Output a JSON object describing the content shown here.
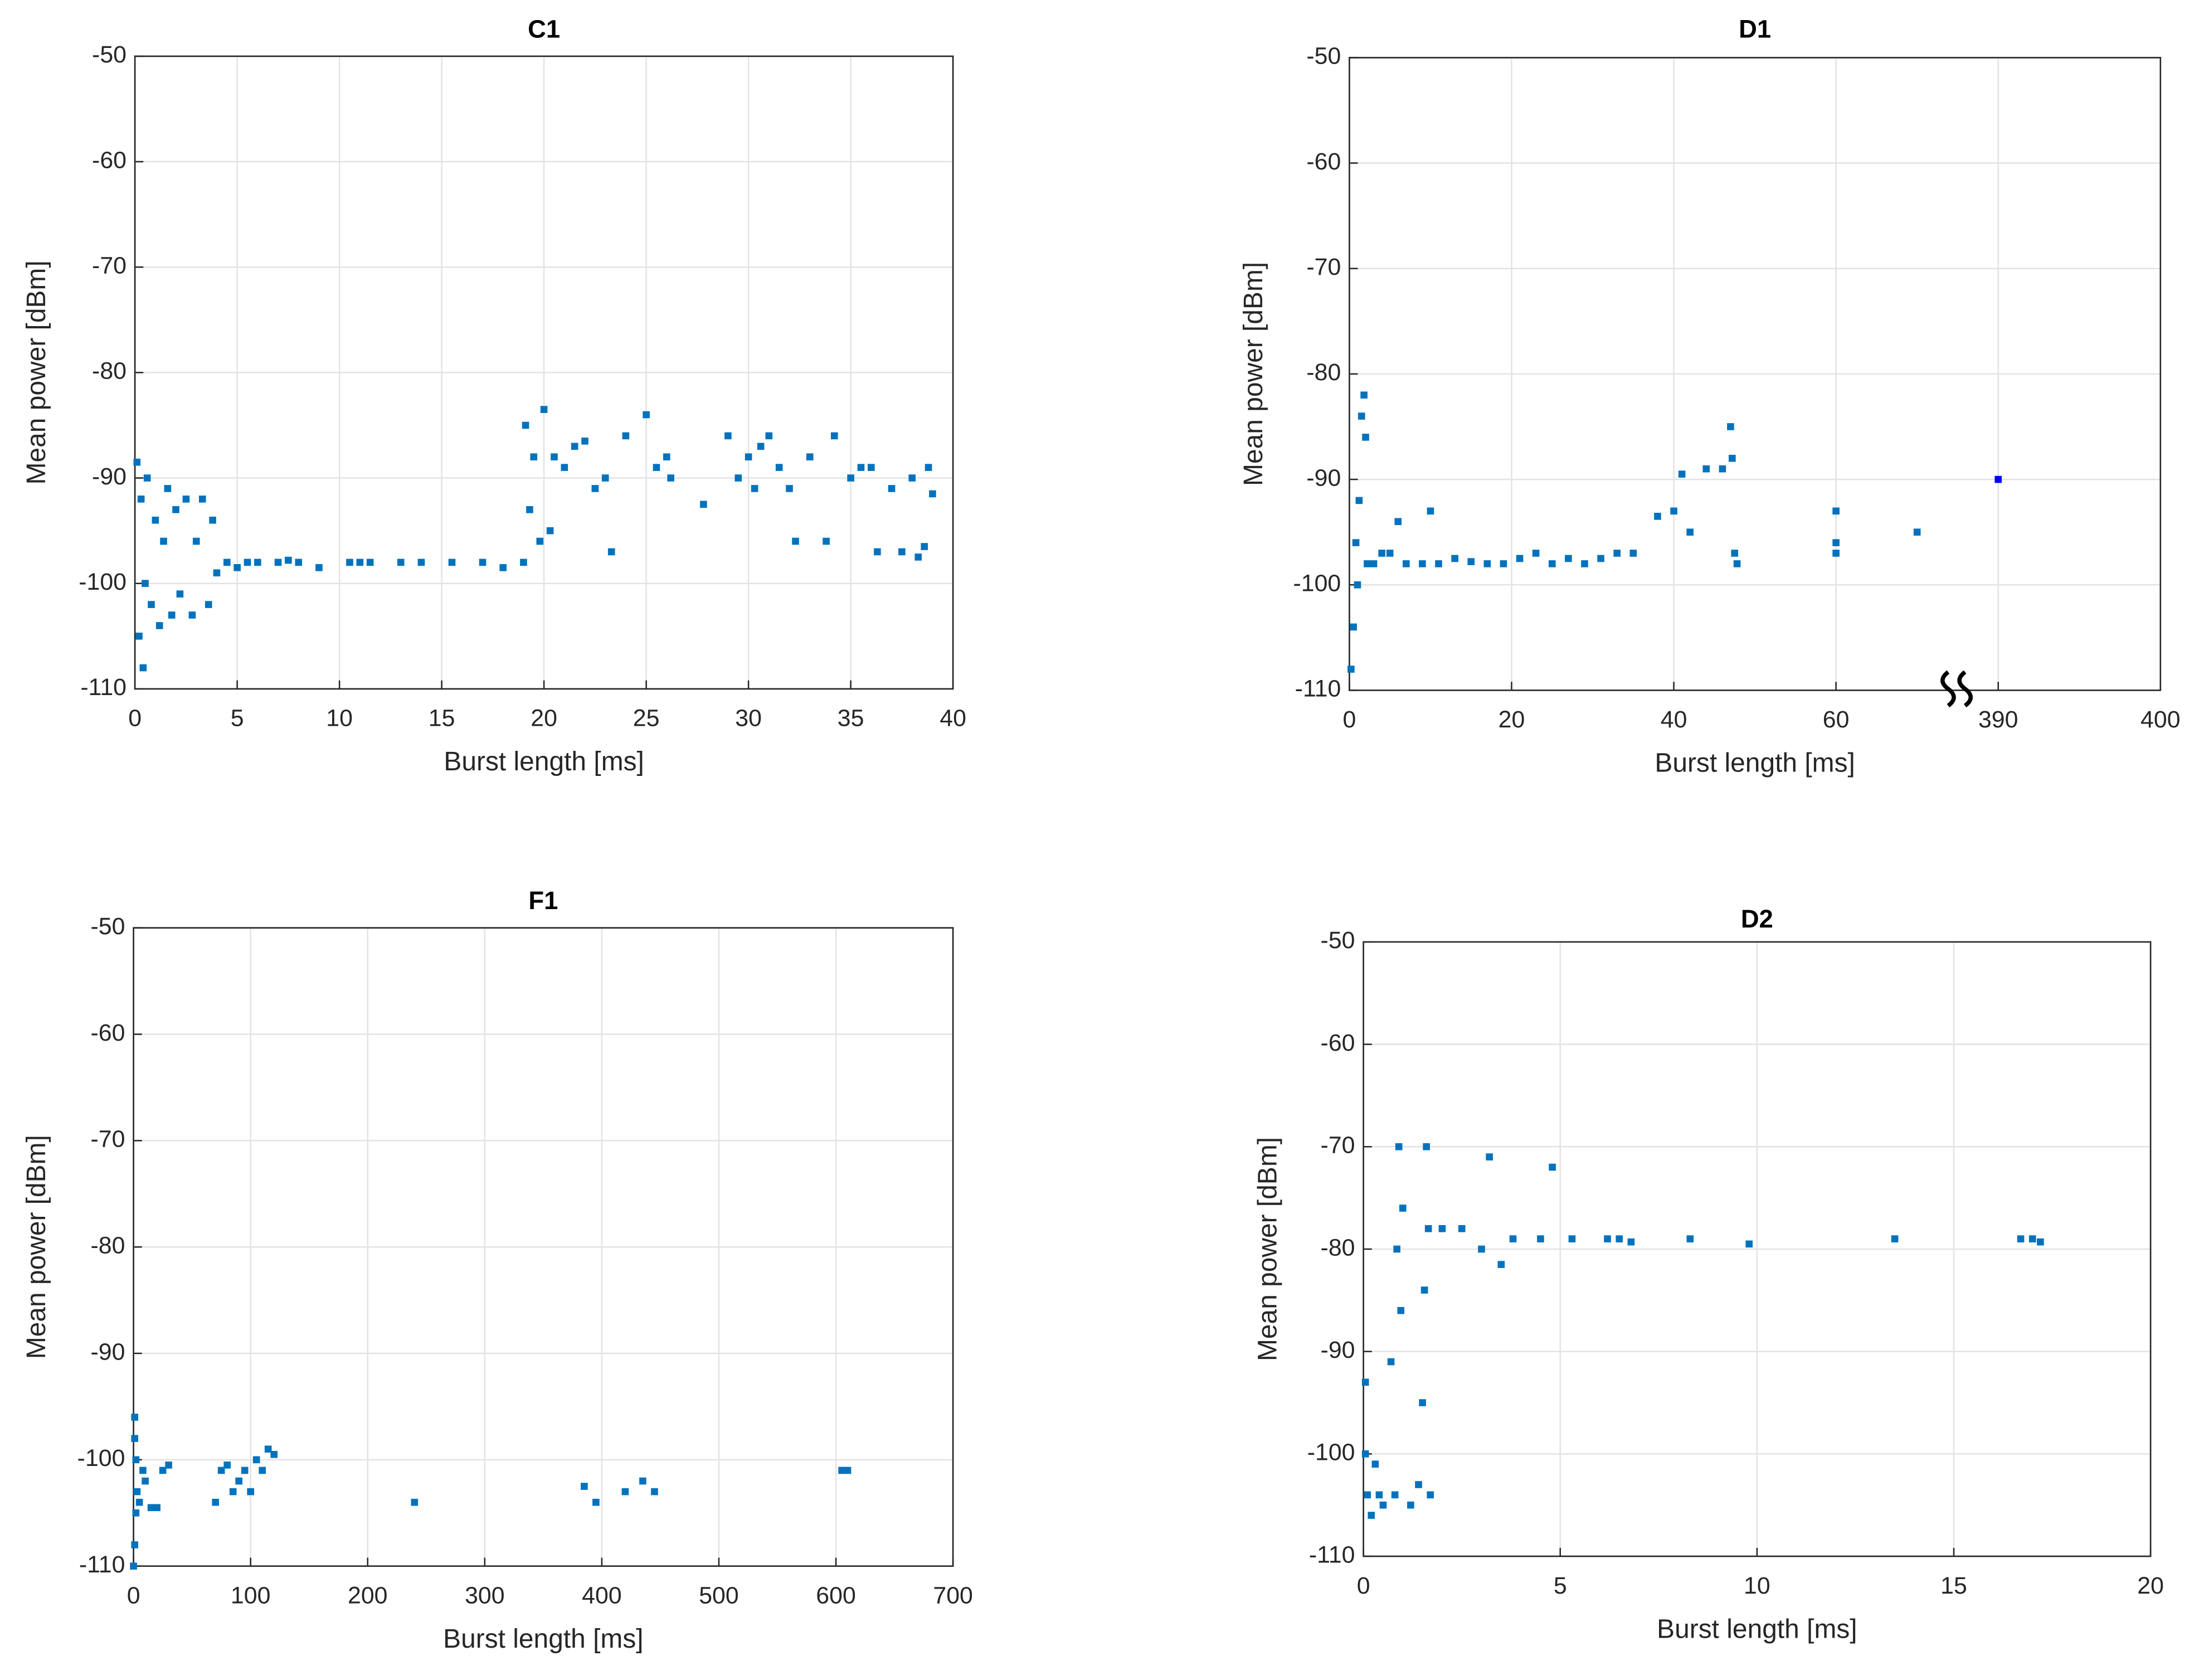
{
  "chart_data": [
    {
      "type": "scatter",
      "title": "C1",
      "xlabel": "Burst length [ms]",
      "ylabel": "Mean power [dBm]",
      "xlim": [
        0,
        40
      ],
      "xticks": [
        0,
        5,
        10,
        15,
        20,
        25,
        30,
        35,
        40
      ],
      "ylim": [
        -110,
        -50
      ],
      "yticks": [
        -110,
        -100,
        -90,
        -80,
        -70,
        -60,
        -50
      ],
      "grid": true,
      "series": [
        {
          "color": "#0072bd",
          "x": [
            0.1,
            0.2,
            0.3,
            0.4,
            0.5,
            0.6,
            0.8,
            1,
            1.2,
            1.4,
            1.6,
            1.8,
            2,
            2.2,
            2.5,
            2.8,
            3,
            3.3,
            3.6,
            3.8,
            4,
            4.5,
            5,
            5.5,
            6,
            7,
            7.5,
            8,
            9,
            10.5,
            11,
            11.5,
            13,
            14,
            15.5,
            17,
            18,
            19,
            19.1,
            19.3,
            19.5,
            19.8,
            20,
            20.3,
            20.5,
            21,
            21.5,
            22,
            22.5,
            23,
            23.3,
            24,
            25,
            25.5,
            26,
            26.2,
            27.8,
            29,
            29.5,
            30,
            30.3,
            30.6,
            31,
            31.5,
            32,
            32.3,
            33,
            33.8,
            34.2,
            35,
            35.5,
            36,
            36.3,
            37,
            37.5,
            38,
            38.3,
            38.6,
            38.8,
            39
          ],
          "y": [
            -88.5,
            -105,
            -92,
            -108,
            -100,
            -90,
            -102,
            -94,
            -104,
            -96,
            -91,
            -103,
            -93,
            -101,
            -92,
            -103,
            -96,
            -92,
            -102,
            -94,
            -99,
            -98,
            -98.5,
            -98,
            -98,
            -98,
            -97.8,
            -98,
            -98.5,
            -98,
            -98,
            -98,
            -98,
            -98,
            -98,
            -98,
            -98.5,
            -98,
            -85,
            -93,
            -88,
            -96,
            -83.5,
            -95,
            -88,
            -89,
            -87,
            -86.5,
            -91,
            -90,
            -97,
            -86,
            -84,
            -89,
            -88,
            -90,
            -92.5,
            -86,
            -90,
            -88,
            -91,
            -87,
            -86,
            -89,
            -91,
            -96,
            -88,
            -96,
            -86,
            -90,
            -89,
            -89,
            -97,
            -91,
            -97,
            -90,
            -97.5,
            -96.5,
            -89,
            -91.5
          ]
        }
      ]
    },
    {
      "type": "scatter",
      "title": "D1",
      "xlabel": "Burst length [ms]",
      "ylabel": "Mean power [dBm]",
      "xlim": [
        0,
        400
      ],
      "x_break": [
        80,
        390
      ],
      "xticks": [
        0,
        20,
        40,
        60,
        390,
        400
      ],
      "ylim": [
        -110,
        -50
      ],
      "yticks": [
        -110,
        -100,
        -90,
        -80,
        -70,
        -60,
        -50
      ],
      "grid": true,
      "series": [
        {
          "color": "#0072bd",
          "x": [
            0.2,
            0.5,
            0.8,
            1,
            1.2,
            1.5,
            1.8,
            2,
            2.2,
            3,
            4,
            5,
            6,
            7,
            9,
            10,
            11,
            13,
            15,
            17,
            19,
            21,
            23,
            25,
            27,
            29,
            31,
            33,
            35,
            38,
            40,
            41,
            42,
            44,
            46,
            47,
            47.2,
            47.5,
            47.8,
            60,
            60,
            60,
            70
          ],
          "y": [
            -108,
            -104,
            -96,
            -100,
            -92,
            -84,
            -82,
            -86,
            -98,
            -98,
            -97,
            -97,
            -94,
            -98,
            -98,
            -93,
            -98,
            -97.5,
            -97.8,
            -98,
            -98,
            -97.5,
            -97,
            -98,
            -97.5,
            -98,
            -97.5,
            -97,
            -97,
            -93.5,
            -93,
            -89.5,
            -95,
            -89,
            -89,
            -85,
            -88,
            -97,
            -98,
            -93,
            -96,
            -97,
            -95
          ]
        },
        {
          "color": "#0000ff",
          "x": [
            390
          ],
          "y": [
            -90
          ]
        }
      ]
    },
    {
      "type": "scatter",
      "title": "F1",
      "xlabel": "Burst length [ms]",
      "ylabel": "Mean power [dBm]",
      "xlim": [
        0,
        700
      ],
      "xticks": [
        0,
        100,
        200,
        300,
        400,
        500,
        600,
        700
      ],
      "ylim": [
        -110,
        -50
      ],
      "yticks": [
        -110,
        -100,
        -90,
        -80,
        -70,
        -60,
        -50
      ],
      "grid": true,
      "series": [
        {
          "color": "#0072bd",
          "x": [
            1,
            1,
            2,
            3,
            2,
            1,
            0,
            5,
            8,
            10,
            15,
            20,
            25,
            30,
            70,
            75,
            80,
            85,
            90,
            95,
            100,
            105,
            110,
            115,
            120,
            240,
            385,
            395,
            420,
            435,
            445,
            605,
            610
          ],
          "y": [
            -96,
            -98,
            -100,
            -103,
            -105,
            -108,
            -110,
            -104,
            -101,
            -102,
            -104.5,
            -104.5,
            -101,
            -100.5,
            -104,
            -101,
            -100.5,
            -103,
            -102,
            -101,
            -103,
            -100,
            -101,
            -99,
            -99.5,
            -104,
            -102.5,
            -104,
            -103,
            -102,
            -103,
            -101,
            -101
          ]
        }
      ]
    },
    {
      "type": "scatter",
      "title": "D2",
      "xlabel": "Burst length [ms]",
      "ylabel": "Mean power [dBm]",
      "xlim": [
        0,
        20
      ],
      "xticks": [
        0,
        5,
        10,
        15,
        20
      ],
      "ylim": [
        -110,
        -50
      ],
      "yticks": [
        -110,
        -100,
        -90,
        -80,
        -70,
        -60,
        -50
      ],
      "grid": true,
      "series": [
        {
          "color": "#0072bd",
          "x": [
            0.05,
            0.05,
            0.1,
            0.2,
            0.3,
            0.4,
            0.5,
            0.7,
            0.8,
            0.85,
            0.9,
            0.95,
            1,
            1.2,
            1.4,
            1.5,
            1.55,
            1.6,
            1.65,
            1.7,
            2,
            2.5,
            3,
            3.2,
            3.5,
            3.8,
            4.5,
            4.8,
            5.3,
            6.2,
            6.5,
            6.8,
            8.3,
            9.8,
            13.5,
            16.7,
            17,
            17.2
          ],
          "y": [
            -93,
            -100,
            -104,
            -106,
            -101,
            -104,
            -105,
            -91,
            -104,
            -80,
            -70,
            -86,
            -76,
            -105,
            -103,
            -95,
            -84,
            -70,
            -78,
            -104,
            -78,
            -78,
            -80,
            -71,
            -81.5,
            -79,
            -79,
            -72,
            -79,
            -79,
            -79,
            -79.3,
            -79,
            -79.5,
            -79,
            -79,
            -79,
            -79.3
          ]
        }
      ]
    }
  ]
}
